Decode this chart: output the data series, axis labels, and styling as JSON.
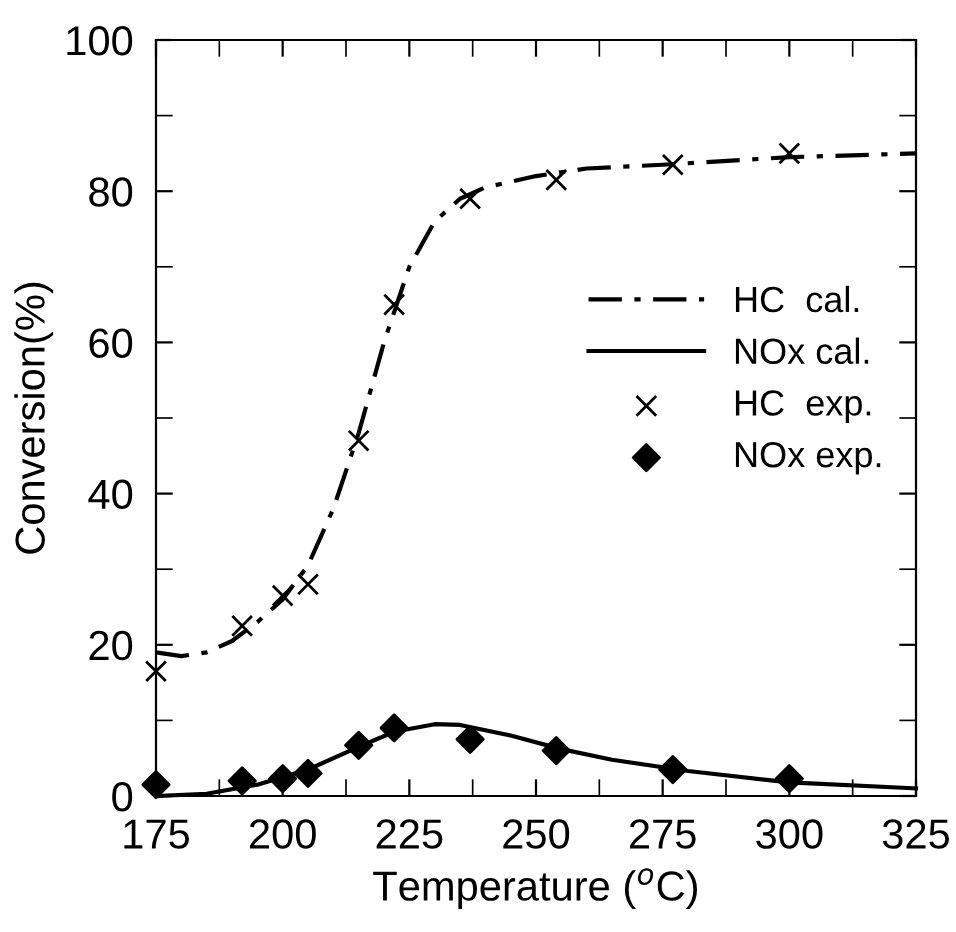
{
  "chart_data": {
    "type": "line",
    "xlabel": "Temperature ($^{o}$C)",
    "ylabel": "Conversion(%)",
    "xlim": [
      175,
      325
    ],
    "xticks": [
      175,
      200,
      225,
      250,
      275,
      300,
      325
    ],
    "ylim": [
      0,
      100
    ],
    "yticks": [
      0,
      20,
      40,
      60,
      80,
      100
    ],
    "grid": false,
    "legend": "right",
    "series": [
      {
        "name": "HC  cal.",
        "color": "#000000",
        "line_style": "dashdot",
        "marker": "none",
        "x": [
          175,
          180,
          185,
          190,
          195,
          200,
          205,
          210,
          215,
          220,
          225,
          230,
          235,
          240,
          250,
          260,
          275,
          300,
          325
        ],
        "values": [
          19,
          18.5,
          19,
          20.5,
          23,
          26,
          30.5,
          38,
          48,
          60,
          70,
          76,
          79,
          80.5,
          82,
          83,
          83.5,
          84.5,
          85
        ]
      },
      {
        "name": "NOx cal.",
        "color": "#000000",
        "line_style": "solid",
        "marker": "none",
        "x": [
          175,
          185,
          195,
          205,
          215,
          222,
          230,
          235,
          245,
          255,
          265,
          280,
          300,
          325
        ],
        "values": [
          0,
          0.3,
          1.5,
          3.5,
          6.5,
          8.5,
          9.5,
          9.4,
          8,
          6.2,
          4.8,
          3.3,
          1.8,
          1.0
        ]
      },
      {
        "name": "HC  exp.",
        "type": "scatter",
        "color": "#000000",
        "marker": "cross",
        "x": [
          175,
          192,
          200,
          205,
          215,
          222,
          237,
          254,
          277,
          300
        ],
        "values": [
          16.5,
          22.5,
          26.5,
          28,
          47,
          65,
          79,
          81.5,
          83.5,
          85
        ]
      },
      {
        "name": "NOx exp.",
        "type": "scatter",
        "color": "#000000",
        "marker": "diamond",
        "x": [
          175,
          192,
          200,
          205,
          215,
          222,
          237,
          254,
          277,
          300
        ],
        "values": [
          1.5,
          2,
          2.3,
          3,
          6.7,
          9,
          7.5,
          6,
          3.5,
          2.3
        ]
      }
    ]
  }
}
